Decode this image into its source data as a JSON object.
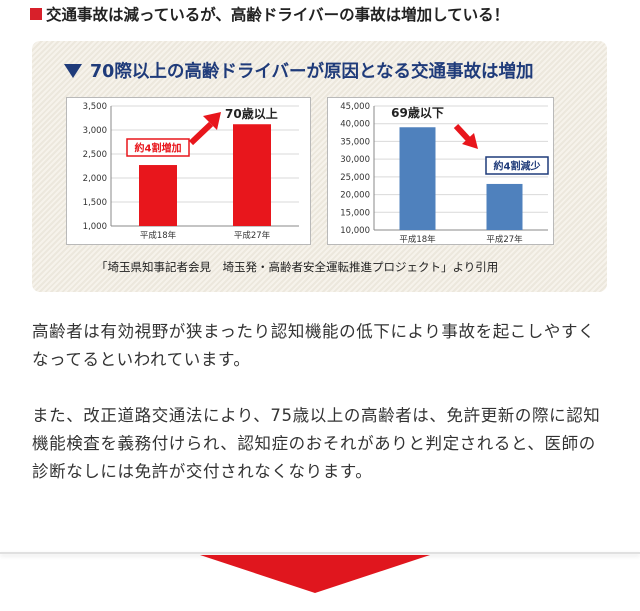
{
  "headline": {
    "text": "交通事故は減っているが、高齢ドライバーの事故は増加している！"
  },
  "panel": {
    "title": "70際以上の高齢ドライバーが原因となる交通事故は増加",
    "citation": "「埼玉県知事記者会見　埼玉発・高齢者安全運転推進プロジェクト」より引用"
  },
  "chart_data": [
    {
      "type": "bar",
      "categories": [
        "平成18年",
        "平成27年"
      ],
      "values": [
        2270,
        3120
      ],
      "ylim": [
        1000,
        3500
      ],
      "yticks": [
        "1,000",
        "1,500",
        "2,000",
        "2,500",
        "3,000",
        "3,500"
      ],
      "yticks_values": [
        1000,
        1500,
        2000,
        2500,
        3000,
        3500
      ],
      "bar_color": "#e8161c",
      "annotations": {
        "callout": "約4割増加",
        "label": "70歳以上"
      },
      "grid": true
    },
    {
      "type": "bar",
      "categories": [
        "平成18年",
        "平成27年"
      ],
      "values": [
        39000,
        23000
      ],
      "ylim": [
        10000,
        45000
      ],
      "yticks": [
        "10,000",
        "15,000",
        "20,000",
        "25,000",
        "30,000",
        "35,000",
        "40,000",
        "45,000"
      ],
      "yticks_values": [
        10000,
        15000,
        20000,
        25000,
        30000,
        35000,
        40000,
        45000
      ],
      "bar_color": "#4f81bd",
      "annotations": {
        "callout": "約4割減少",
        "label": "69歳以下"
      },
      "grid": true
    }
  ],
  "body": {
    "paragraph1": "高齢者は有効視野が狭まったり認知機能の低下により事故を起こしやすくなってるといわれています。",
    "paragraph2": "また、改正道路交通法により、75歳以上の高齢者は、免許更新の際に認知機能検査を義務付けられ、認知症のおそれがありと判定されると、医師の診断なしには免許が交付されなくなります。"
  }
}
